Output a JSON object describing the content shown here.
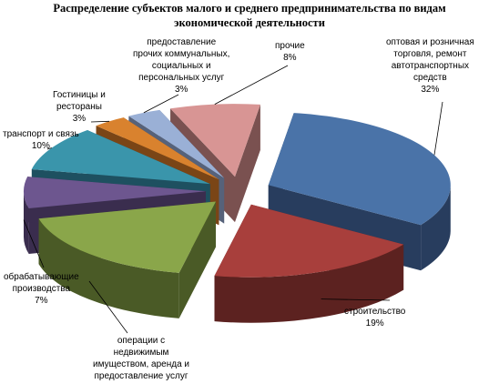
{
  "chart_data": {
    "type": "pie",
    "style": "3d-exploded",
    "title": "Распределение субъектов малого и среднего предпринимательства по видам экономической деятельности",
    "legend": "none",
    "slices": [
      {
        "label": "оптовая и розничная торговля, ремонт автотранспортных средств",
        "label_lines": [
          "оптовая и розничная",
          "торговля, ремонт",
          "автотранспортных",
          "средств"
        ],
        "value": 32,
        "value_text": "32%",
        "color": "#4a73a8",
        "side_color": "#283d5e"
      },
      {
        "label": "строительство",
        "label_lines": [
          "строительство"
        ],
        "value": 19,
        "value_text": "19%",
        "color": "#a83f3c",
        "side_color": "#5c2220"
      },
      {
        "label": "операции с недвижимым имуществом, аренда и предоставление услуг",
        "label_lines": [
          "операции с",
          "недвижимым",
          "имуществом, аренда и",
          "предоставление услуг"
        ],
        "value": 18,
        "value_text": "",
        "color": "#8aa64a",
        "side_color": "#4a5a26"
      },
      {
        "label": "обрабатывающие производства",
        "label_lines": [
          "обрабатывающие",
          "производства"
        ],
        "value": 7,
        "value_text": "7%",
        "color": "#6d568f",
        "side_color": "#3a2d4e"
      },
      {
        "label": "транспорт и связь",
        "label_lines": [
          "транспорт и связь"
        ],
        "value": 10,
        "value_text": "10%",
        "color": "#3a95ab",
        "side_color": "#1e5060"
      },
      {
        "label": "Гостиницы и рестораны",
        "label_lines": [
          "Гостиницы и",
          "рестораны"
        ],
        "value": 3,
        "value_text": "3%",
        "color": "#d9822e",
        "side_color": "#7a4516"
      },
      {
        "label": "предоставление прочих коммунальных, социальных и персональных услуг",
        "label_lines": [
          "предоставление",
          "прочих коммунальных,",
          "социальных и",
          "персональных услуг"
        ],
        "value": 3,
        "value_text": "3%",
        "color": "#9ab0d6",
        "side_color": "#56627a"
      },
      {
        "label": "прочие",
        "label_lines": [
          "прочие"
        ],
        "value": 8,
        "value_text": "8%",
        "color": "#d89594",
        "side_color": "#7a5150"
      }
    ]
  }
}
